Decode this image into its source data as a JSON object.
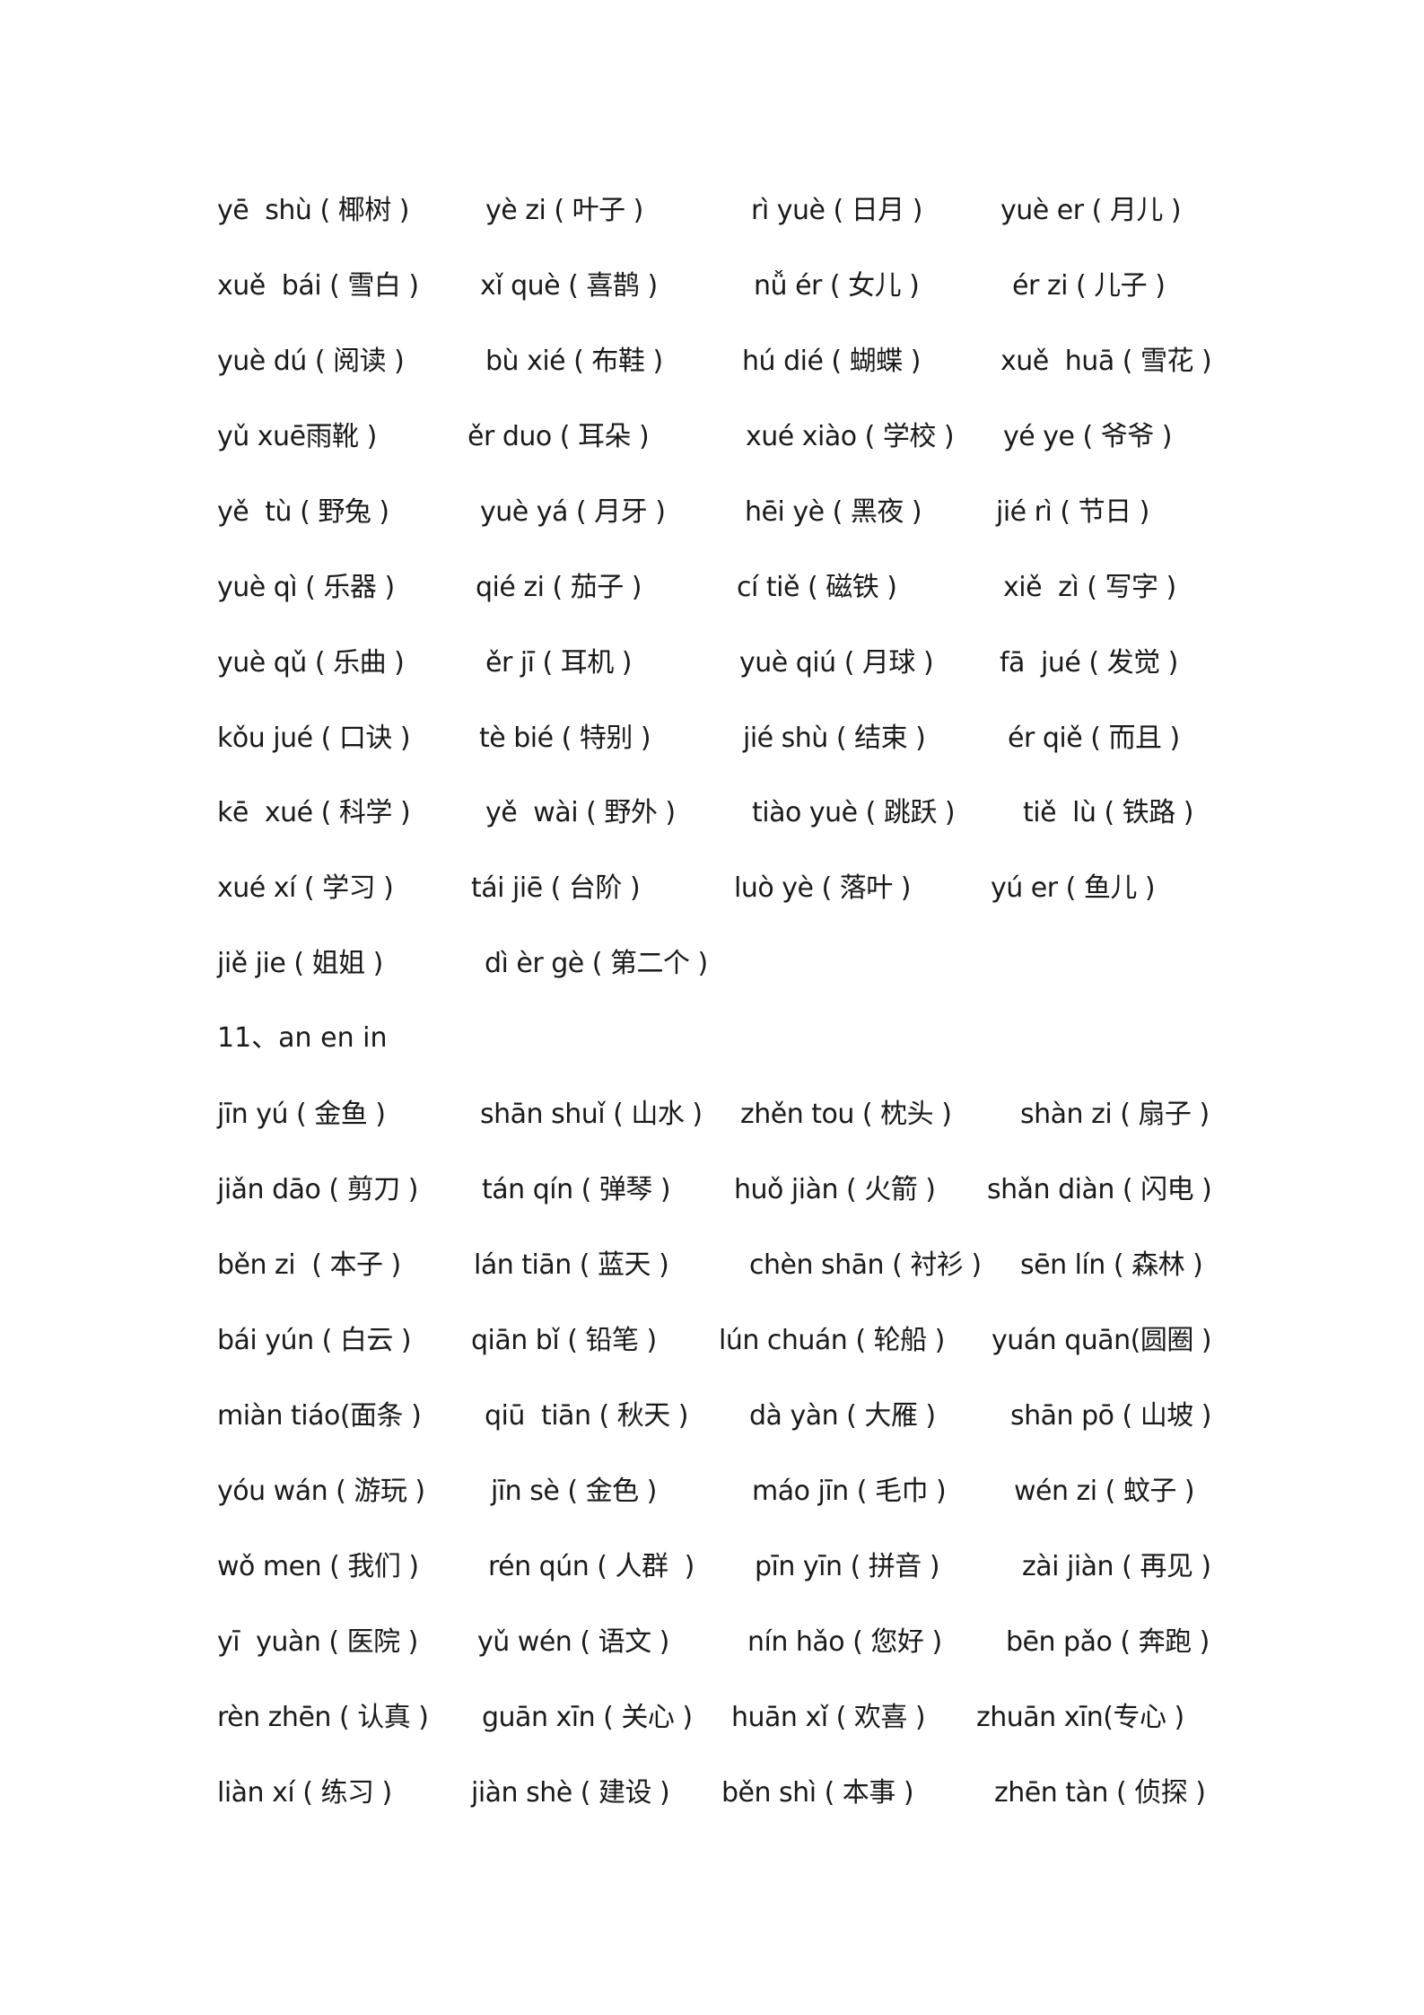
{
  "section1": {
    "rows": [
      [
        "yē  shù ( 椰树 )",
        "yè zi ( 叶子 )",
        "rì yuè ( 日月 )",
        "yuè er ( 月儿 )"
      ],
      [
        "xuě  bái ( 雪白 )",
        "xǐ què ( 喜鹊 )",
        "nǚ ér ( 女儿 )",
        "ér zi ( 儿子 )"
      ],
      [
        "yuè dú ( 阅读 )",
        "bù xié ( 布鞋 )",
        "hú dié ( 蝴蝶 )",
        "xuě  huā ( 雪花 )"
      ],
      [
        "yǔ xuē雨靴 )",
        "ěr duo ( 耳朵 )",
        "xué xiào ( 学校 )",
        "yé ye ( 爷爷 )"
      ],
      [
        "yě  tù ( 野兔 )",
        "yuè yá ( 月牙 )",
        "hēi yè ( 黑夜 )",
        "jié rì ( 节日 )"
      ],
      [
        "yuè qì ( 乐器 )",
        "qié zi ( 茄子 )",
        "cí tiě ( 磁铁 )",
        "xiě  zì ( 写字 )"
      ],
      [
        "yuè qǔ ( 乐曲 )",
        "ěr jī ( 耳机 )",
        "yuè qiú ( 月球 )",
        "fā  jué ( 发觉 )"
      ],
      [
        "kǒu jué ( 口诀 )",
        "tè bié ( 特别 )",
        "jié shù ( 结束 )",
        "ér qiě ( 而且 )"
      ],
      [
        "kē  xué ( 科学 )",
        "yě  wài ( 野外 )",
        "tiào yuè ( 跳跃 )",
        "tiě  lù ( 铁路 )"
      ],
      [
        "xué xí ( 学习 )",
        "tái jiē ( 台阶 )",
        "luò yè ( 落叶 )",
        "yú er ( 鱼儿 )"
      ],
      [
        "jiě jie ( 姐姐 )",
        "dì èr gè ( 第二个 )"
      ]
    ]
  },
  "section2": {
    "heading": "11、an en in",
    "rows": [
      [
        "jīn yú ( 金鱼 )",
        "shān shuǐ ( 山水 )",
        "zhěn tou ( 枕头 )",
        "shàn zi ( 扇子 )"
      ],
      [
        "jiǎn dāo ( 剪刀 )",
        "tán qín ( 弹琴 )",
        "huǒ jiàn ( 火箭 )",
        "shǎn diàn ( 闪电 )"
      ],
      [
        "běn zi  ( 本子 )",
        "lán tiān ( 蓝天 )",
        "chèn shān ( 衬衫 )",
        "sēn lín ( 森林 )"
      ],
      [
        "bái yún ( 白云 )",
        "qiān bǐ ( 铅笔 )",
        "lún chuán ( 轮船 )",
        "yuán quān(圆圈 )"
      ],
      [
        "miàn tiáo(面条 )",
        "qiū  tiān ( 秋天 )",
        "dà yàn ( 大雁 )",
        "shān pō ( 山坡 )"
      ],
      [
        "yóu wán ( 游玩 )",
        "jīn sè ( 金色 )",
        "máo jīn ( 毛巾 )",
        "wén zi ( 蚊子 )"
      ],
      [
        "wǒ men ( 我们 )",
        "rén qún ( 人群  )",
        "pīn yīn ( 拼音 )",
        "zài jiàn ( 再见 )"
      ],
      [
        "yī  yuàn ( 医院 )",
        "yǔ wén ( 语文 )",
        "nín hǎo ( 您好 )",
        "bēn pǎo ( 奔跑 )"
      ],
      [
        "rèn zhēn ( 认真 )",
        "guān xīn ( 关心 )",
        "huān xǐ ( 欢喜 )",
        "zhuān xīn(专心 )"
      ],
      [
        "liàn xí ( 练习 )",
        "jiàn shè ( 建设 )",
        "běn shì ( 本事 )",
        "zhēn tàn ( 侦探 )"
      ]
    ]
  }
}
